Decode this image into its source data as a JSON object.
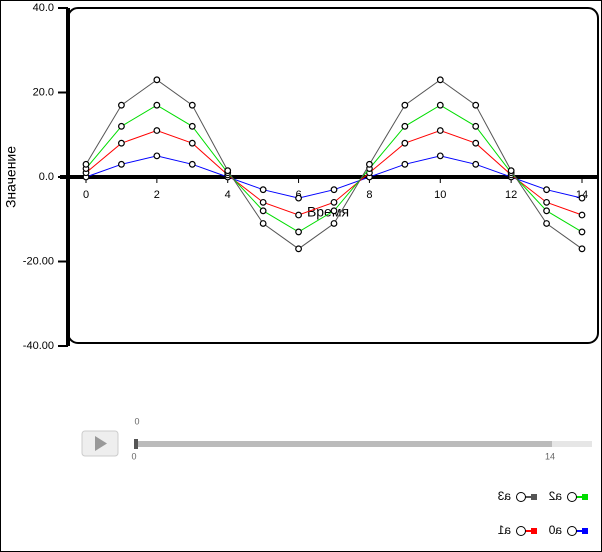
{
  "chart_data": {
    "type": "line",
    "x_label": "Время",
    "y_label": "Значение",
    "x": [
      0,
      1,
      2,
      3,
      4,
      5,
      6,
      7,
      8,
      9,
      10,
      11,
      12,
      13,
      14
    ],
    "xlim": [
      0,
      14
    ],
    "xticks": [
      0,
      2,
      4,
      6,
      8,
      10,
      12,
      14
    ],
    "ylim": [
      -40,
      40
    ],
    "yticks": [
      {
        "value": 40,
        "label": "40.0"
      },
      {
        "value": 20,
        "label": "20.0"
      },
      {
        "value": 0,
        "label": "0.0"
      },
      {
        "value": -20,
        "label": "-20.00"
      },
      {
        "value": -40,
        "label": "-40.00"
      }
    ],
    "series": [
      {
        "name": "a0",
        "color": "#0000ff",
        "values": [
          0,
          3,
          5,
          3,
          0,
          -3,
          -5,
          -3,
          0,
          3,
          5,
          3,
          0,
          -3,
          -5
        ]
      },
      {
        "name": "a1",
        "color": "#ff0000",
        "values": [
          1,
          8,
          11,
          8,
          0.5,
          -6,
          -9,
          -6,
          1,
          8,
          11,
          8,
          0.5,
          -6,
          -9
        ]
      },
      {
        "name": "a2",
        "color": "#00dd00",
        "values": [
          2,
          12,
          17,
          12,
          1,
          -8,
          -13,
          -8,
          2,
          12,
          17,
          12,
          1,
          -8,
          -13
        ]
      },
      {
        "name": "a3",
        "color": "#555555",
        "values": [
          3,
          17,
          23,
          17,
          1.5,
          -11,
          -17,
          -11,
          3,
          17,
          23,
          17,
          1.5,
          -11,
          -17
        ]
      }
    ],
    "slider": {
      "value": 0,
      "min": 0,
      "max": 14
    }
  }
}
